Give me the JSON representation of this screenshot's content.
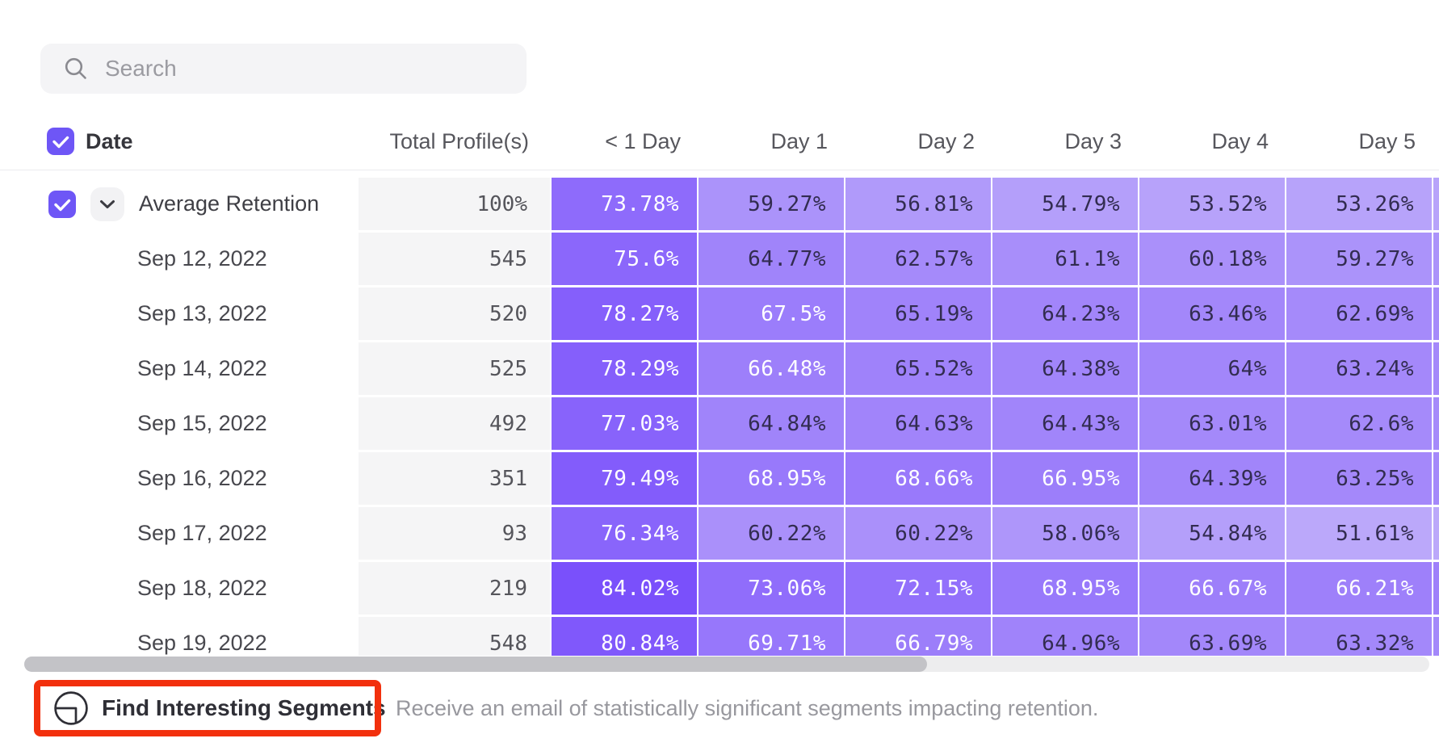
{
  "search": {
    "placeholder": "Search"
  },
  "table": {
    "columns": [
      "Date",
      "Total Profile(s)",
      "< 1 Day",
      "Day 1",
      "Day 2",
      "Day 3",
      "Day 4",
      "Day 5"
    ],
    "rows": [
      {
        "label": "Average Retention",
        "type": "summary",
        "total": "100%",
        "values": [
          73.78,
          59.27,
          56.81,
          54.79,
          53.52,
          53.26
        ]
      },
      {
        "label": "Sep 12, 2022",
        "type": "date",
        "total": "545",
        "values": [
          75.6,
          64.77,
          62.57,
          61.1,
          60.18,
          59.27
        ]
      },
      {
        "label": "Sep 13, 2022",
        "type": "date",
        "total": "520",
        "values": [
          78.27,
          67.5,
          65.19,
          64.23,
          63.46,
          62.69
        ]
      },
      {
        "label": "Sep 14, 2022",
        "type": "date",
        "total": "525",
        "values": [
          78.29,
          66.48,
          65.52,
          64.38,
          64,
          63.24
        ]
      },
      {
        "label": "Sep 15, 2022",
        "type": "date",
        "total": "492",
        "values": [
          77.03,
          64.84,
          64.63,
          64.43,
          63.01,
          62.6
        ]
      },
      {
        "label": "Sep 16, 2022",
        "type": "date",
        "total": "351",
        "values": [
          79.49,
          68.95,
          68.66,
          66.95,
          64.39,
          63.25
        ]
      },
      {
        "label": "Sep 17, 2022",
        "type": "date",
        "total": "93",
        "values": [
          76.34,
          60.22,
          60.22,
          58.06,
          54.84,
          51.61
        ]
      },
      {
        "label": "Sep 18, 2022",
        "type": "date",
        "total": "219",
        "values": [
          84.02,
          73.06,
          72.15,
          68.95,
          66.67,
          66.21
        ]
      },
      {
        "label": "Sep 19, 2022",
        "type": "date",
        "total": "548",
        "values": [
          80.84,
          69.71,
          66.79,
          64.96,
          63.69,
          63.32
        ]
      }
    ]
  },
  "footer": {
    "button_label": "Find Interesting Segments",
    "description": "Receive an email of statistically significant segments impacting retention."
  },
  "colors": {
    "accent_purple": "#6e56f6",
    "annotation_red": "#f2300d",
    "heat_light": "#beacfa",
    "heat_dark": "#784dfb",
    "heat_min": 50,
    "heat_max": 85,
    "white_text_threshold": 66,
    "cell_dark_text": "#322c50",
    "total_col_bg": "#f5f5f6"
  }
}
